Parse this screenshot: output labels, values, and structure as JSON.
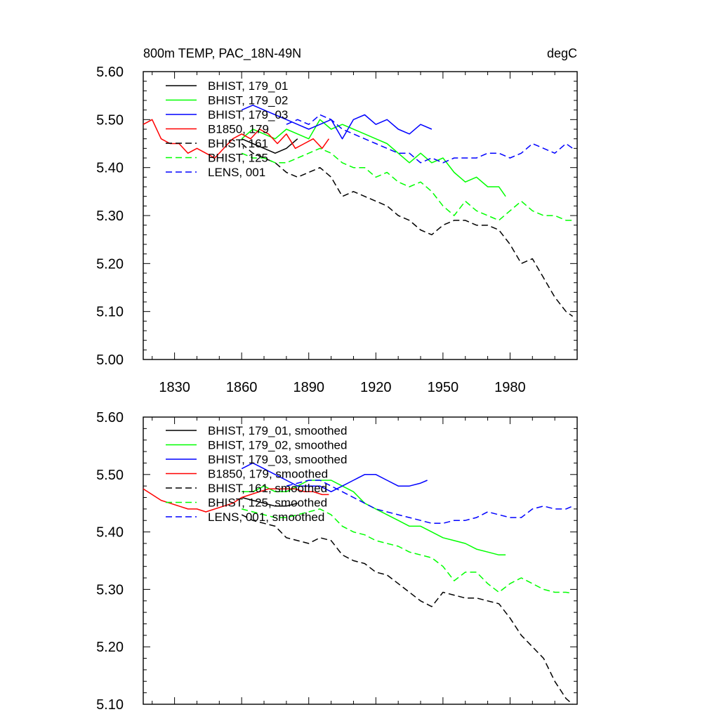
{
  "chart_data": [
    {
      "type": "line",
      "title": "800m TEMP, PAC_18N-49N",
      "units": "degC",
      "ylim": [
        5.0,
        5.6
      ],
      "yticks": [
        "5.00",
        "5.10",
        "5.20",
        "5.30",
        "5.40",
        "5.50",
        "5.60"
      ],
      "xlim": [
        1816,
        2010
      ],
      "xticks": [
        "1830",
        "1860",
        "1890",
        "1920",
        "1950",
        "1980"
      ],
      "xlabel": "",
      "ylabel": "",
      "grid": false,
      "legend_position": "top-left",
      "series": [
        {
          "name": "BHIST, 179_01",
          "color": "#000000",
          "dash": "solid",
          "x": [
            1860,
            1865,
            1870,
            1875,
            1880,
            1885
          ],
          "y": [
            5.46,
            5.45,
            5.44,
            5.43,
            5.44,
            5.46
          ]
        },
        {
          "name": "BHIST, 179_02",
          "color": "#00ff00",
          "dash": "solid",
          "x": [
            1860,
            1865,
            1870,
            1875,
            1880,
            1885,
            1890,
            1895,
            1900,
            1905,
            1910,
            1915,
            1920,
            1925,
            1930,
            1935,
            1940,
            1945,
            1950,
            1955,
            1960,
            1965,
            1970,
            1975,
            1978
          ],
          "y": [
            5.46,
            5.48,
            5.47,
            5.46,
            5.48,
            5.47,
            5.46,
            5.5,
            5.48,
            5.49,
            5.48,
            5.47,
            5.46,
            5.45,
            5.43,
            5.41,
            5.43,
            5.41,
            5.42,
            5.39,
            5.37,
            5.38,
            5.36,
            5.36,
            5.34
          ]
        },
        {
          "name": "BHIST, 179_03",
          "color": "#0000ff",
          "dash": "solid",
          "x": [
            1860,
            1865,
            1870,
            1875,
            1880,
            1885,
            1890,
            1895,
            1900,
            1905,
            1910,
            1915,
            1920,
            1925,
            1930,
            1935,
            1940,
            1945
          ],
          "y": [
            5.52,
            5.53,
            5.52,
            5.51,
            5.5,
            5.49,
            5.48,
            5.49,
            5.5,
            5.46,
            5.5,
            5.51,
            5.49,
            5.5,
            5.48,
            5.47,
            5.49,
            5.48
          ]
        },
        {
          "name": "B1850, 179",
          "color": "#ff0000",
          "dash": "solid",
          "x": [
            1816,
            1820,
            1824,
            1828,
            1832,
            1836,
            1840,
            1844,
            1848,
            1852,
            1856,
            1860,
            1864,
            1868,
            1872,
            1876,
            1880,
            1884,
            1888,
            1892,
            1896,
            1899
          ],
          "y": [
            5.49,
            5.5,
            5.46,
            5.45,
            5.45,
            5.43,
            5.44,
            5.43,
            5.42,
            5.44,
            5.46,
            5.47,
            5.46,
            5.48,
            5.47,
            5.45,
            5.47,
            5.44,
            5.45,
            5.46,
            5.44,
            5.46
          ]
        },
        {
          "name": "BHIST, 161",
          "color": "#000000",
          "dash": "dashed",
          "x": [
            1860,
            1865,
            1870,
            1875,
            1880,
            1885,
            1890,
            1895,
            1900,
            1905,
            1910,
            1915,
            1920,
            1925,
            1930,
            1935,
            1940,
            1945,
            1950,
            1955,
            1960,
            1965,
            1970,
            1975,
            1980,
            1985,
            1990,
            1995,
            2000,
            2005,
            2008
          ],
          "y": [
            5.45,
            5.43,
            5.42,
            5.41,
            5.39,
            5.38,
            5.39,
            5.4,
            5.38,
            5.34,
            5.35,
            5.34,
            5.33,
            5.32,
            5.3,
            5.29,
            5.27,
            5.26,
            5.28,
            5.29,
            5.29,
            5.28,
            5.28,
            5.27,
            5.24,
            5.2,
            5.21,
            5.17,
            5.13,
            5.1,
            5.09
          ]
        },
        {
          "name": "BHIST, 125",
          "color": "#00ff00",
          "dash": "dashed",
          "x": [
            1860,
            1865,
            1870,
            1875,
            1880,
            1885,
            1890,
            1895,
            1900,
            1905,
            1910,
            1915,
            1920,
            1925,
            1930,
            1935,
            1940,
            1945,
            1950,
            1955,
            1960,
            1965,
            1970,
            1975,
            1980,
            1985,
            1990,
            1995,
            2000,
            2005,
            2008
          ],
          "y": [
            5.43,
            5.42,
            5.42,
            5.41,
            5.41,
            5.42,
            5.43,
            5.44,
            5.43,
            5.41,
            5.4,
            5.4,
            5.38,
            5.39,
            5.37,
            5.36,
            5.37,
            5.35,
            5.32,
            5.3,
            5.33,
            5.31,
            5.3,
            5.29,
            5.31,
            5.33,
            5.31,
            5.3,
            5.3,
            5.29,
            5.29
          ]
        },
        {
          "name": "LENS, 001",
          "color": "#0000ff",
          "dash": "dashed",
          "x": [
            1880,
            1885,
            1890,
            1895,
            1900,
            1905,
            1910,
            1915,
            1920,
            1925,
            1930,
            1935,
            1940,
            1945,
            1950,
            1955,
            1960,
            1965,
            1970,
            1975,
            1980,
            1985,
            1990,
            1995,
            2000,
            2005,
            2008
          ],
          "y": [
            5.49,
            5.5,
            5.49,
            5.51,
            5.5,
            5.48,
            5.47,
            5.46,
            5.45,
            5.44,
            5.43,
            5.43,
            5.41,
            5.42,
            5.41,
            5.42,
            5.42,
            5.42,
            5.43,
            5.43,
            5.42,
            5.43,
            5.45,
            5.44,
            5.43,
            5.45,
            5.44
          ]
        }
      ]
    },
    {
      "type": "line",
      "title": "",
      "ylim": [
        5.1,
        5.6
      ],
      "yticks": [
        "5.10",
        "5.20",
        "5.30",
        "5.40",
        "5.50",
        "5.60"
      ],
      "xlim": [
        1816,
        2010
      ],
      "xticks": [],
      "xlabel": "",
      "ylabel": "",
      "grid": false,
      "legend_position": "top-left",
      "series": [
        {
          "name": "BHIST, 179_01, smoothed",
          "color": "#000000",
          "dash": "solid",
          "x": [
            1860,
            1865,
            1870,
            1875,
            1880,
            1885
          ],
          "y": [
            5.46,
            5.455,
            5.45,
            5.445,
            5.445,
            5.45
          ]
        },
        {
          "name": "BHIST, 179_02, smoothed",
          "color": "#00ff00",
          "dash": "solid",
          "x": [
            1860,
            1865,
            1870,
            1875,
            1880,
            1885,
            1890,
            1895,
            1900,
            1905,
            1910,
            1915,
            1920,
            1925,
            1930,
            1935,
            1940,
            1945,
            1950,
            1955,
            1960,
            1965,
            1970,
            1975,
            1978
          ],
          "y": [
            5.47,
            5.47,
            5.48,
            5.47,
            5.47,
            5.48,
            5.49,
            5.49,
            5.49,
            5.48,
            5.47,
            5.45,
            5.44,
            5.43,
            5.42,
            5.41,
            5.41,
            5.4,
            5.39,
            5.385,
            5.38,
            5.37,
            5.365,
            5.36,
            5.36
          ]
        },
        {
          "name": "BHIST, 179_03, smoothed",
          "color": "#0000ff",
          "dash": "solid",
          "x": [
            1860,
            1865,
            1870,
            1875,
            1880,
            1885,
            1890,
            1895,
            1900,
            1905,
            1910,
            1915,
            1920,
            1925,
            1930,
            1935,
            1940,
            1943
          ],
          "y": [
            5.51,
            5.52,
            5.51,
            5.5,
            5.49,
            5.48,
            5.48,
            5.48,
            5.47,
            5.48,
            5.49,
            5.5,
            5.5,
            5.49,
            5.48,
            5.48,
            5.485,
            5.49
          ]
        },
        {
          "name": "B1850, 179, smoothed",
          "color": "#ff0000",
          "dash": "solid",
          "x": [
            1816,
            1820,
            1824,
            1828,
            1832,
            1836,
            1840,
            1844,
            1848,
            1852,
            1856,
            1860,
            1864,
            1868,
            1872,
            1876,
            1880,
            1884,
            1888,
            1892,
            1896,
            1899
          ],
          "y": [
            5.475,
            5.465,
            5.455,
            5.45,
            5.445,
            5.44,
            5.44,
            5.435,
            5.44,
            5.445,
            5.45,
            5.46,
            5.465,
            5.47,
            5.475,
            5.475,
            5.475,
            5.475,
            5.47,
            5.47,
            5.465,
            5.465
          ]
        },
        {
          "name": "BHIST, 161, smoothed",
          "color": "#000000",
          "dash": "dashed",
          "x": [
            1860,
            1865,
            1870,
            1875,
            1880,
            1885,
            1890,
            1895,
            1900,
            1905,
            1910,
            1915,
            1920,
            1925,
            1930,
            1935,
            1940,
            1945,
            1950,
            1955,
            1960,
            1965,
            1970,
            1975,
            1980,
            1985,
            1990,
            1995,
            2000,
            2005,
            2008
          ],
          "y": [
            5.43,
            5.42,
            5.415,
            5.41,
            5.39,
            5.385,
            5.38,
            5.39,
            5.385,
            5.36,
            5.35,
            5.345,
            5.33,
            5.325,
            5.31,
            5.295,
            5.28,
            5.27,
            5.295,
            5.29,
            5.285,
            5.285,
            5.28,
            5.275,
            5.25,
            5.22,
            5.2,
            5.18,
            5.14,
            5.11,
            5.1
          ]
        },
        {
          "name": "BHIST, 125, smoothed",
          "color": "#00ff00",
          "dash": "dashed",
          "x": [
            1860,
            1865,
            1870,
            1875,
            1880,
            1885,
            1890,
            1895,
            1900,
            1905,
            1910,
            1915,
            1920,
            1925,
            1930,
            1935,
            1940,
            1945,
            1950,
            1955,
            1960,
            1965,
            1970,
            1975,
            1980,
            1985,
            1990,
            1995,
            2000,
            2005,
            2008
          ],
          "y": [
            5.44,
            5.435,
            5.43,
            5.425,
            5.425,
            5.43,
            5.435,
            5.44,
            5.43,
            5.41,
            5.4,
            5.395,
            5.385,
            5.38,
            5.375,
            5.365,
            5.36,
            5.355,
            5.34,
            5.315,
            5.33,
            5.33,
            5.31,
            5.295,
            5.31,
            5.32,
            5.31,
            5.3,
            5.295,
            5.295,
            5.293
          ]
        },
        {
          "name": "LENS, 001, smoothed",
          "color": "#0000ff",
          "dash": "dashed",
          "x": [
            1880,
            1885,
            1890,
            1895,
            1900,
            1905,
            1910,
            1915,
            1920,
            1925,
            1930,
            1935,
            1940,
            1945,
            1950,
            1955,
            1960,
            1965,
            1970,
            1975,
            1980,
            1985,
            1990,
            1995,
            2000,
            2005,
            2008
          ],
          "y": [
            5.48,
            5.485,
            5.49,
            5.49,
            5.48,
            5.47,
            5.46,
            5.45,
            5.44,
            5.435,
            5.43,
            5.425,
            5.42,
            5.415,
            5.415,
            5.42,
            5.42,
            5.425,
            5.435,
            5.43,
            5.425,
            5.425,
            5.44,
            5.445,
            5.44,
            5.44,
            5.445
          ]
        }
      ]
    }
  ]
}
